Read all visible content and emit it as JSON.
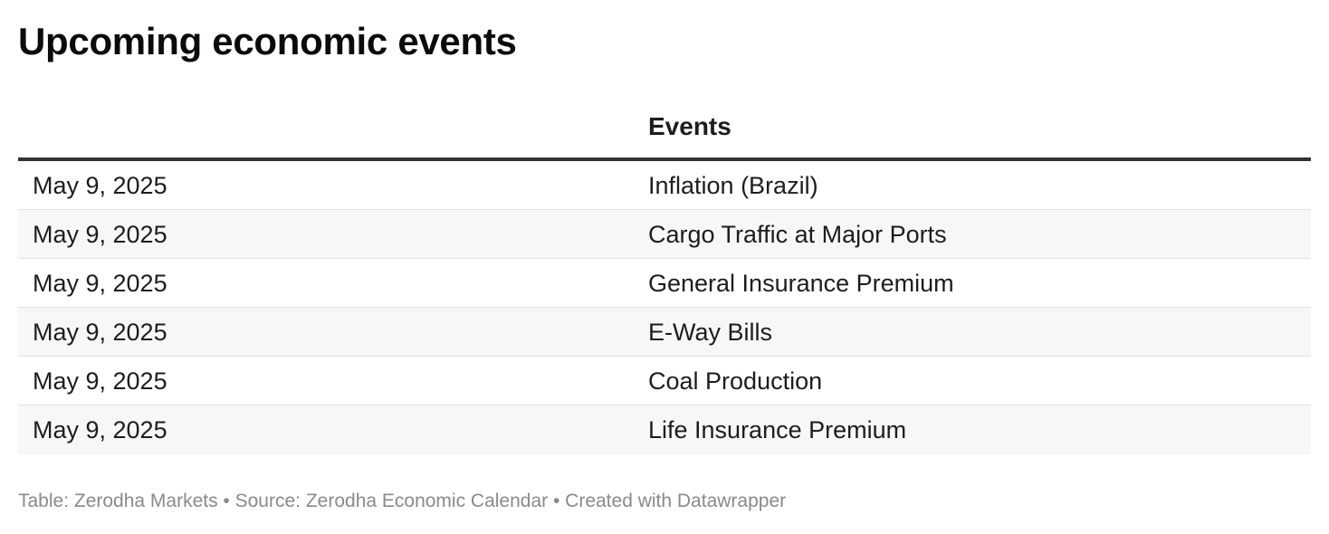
{
  "chart_data": {
    "type": "table",
    "title": "Upcoming economic events",
    "columns": [
      "",
      "Events"
    ],
    "rows": [
      {
        "date": "May 9, 2025",
        "event": "Inflation (Brazil)"
      },
      {
        "date": "May 9, 2025",
        "event": "Cargo Traffic at Major Ports"
      },
      {
        "date": "May 9, 2025",
        "event": "General Insurance Premium"
      },
      {
        "date": "May 9, 2025",
        "event": "E-Way Bills"
      },
      {
        "date": "May 9, 2025",
        "event": "Coal Production"
      },
      {
        "date": "May 9, 2025",
        "event": "Life Insurance Premium"
      }
    ],
    "footer": "Table: Zerodha Markets • Source: Zerodha Economic Calendar • Created with Datawrapper",
    "colors": {
      "header_rule": "#333333",
      "row_alt_bg": "#f7f7f7",
      "row_divider": "#e2e2e2",
      "footer_text": "#8a8a8a"
    }
  }
}
